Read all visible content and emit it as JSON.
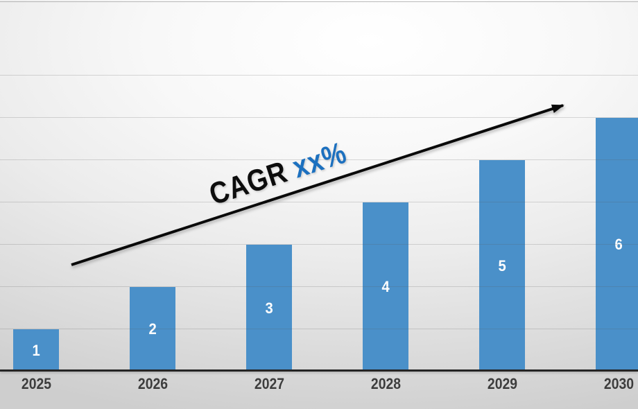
{
  "slide": {
    "annotation": {
      "prefix": "CAGR ",
      "highlight": "xx%"
    },
    "colors": {
      "bar": "#4a90c9",
      "bar_label": "#ffffff",
      "tick_label": "#3d3d3d",
      "axis_line": "#242424",
      "gridline": "rgba(90,90,90,0.22)",
      "annotation_text": "#0d0d0d",
      "annotation_highlight": "#1c70bf",
      "arrow": "#0a0a0a"
    }
  },
  "chart_data": {
    "type": "bar",
    "categories": [
      "2025",
      "2026",
      "2027",
      "2028",
      "2029",
      "2030"
    ],
    "values": [
      1,
      2,
      3,
      4,
      5,
      6
    ],
    "bar_labels": [
      "1",
      "2",
      "3",
      "4",
      "5",
      "6"
    ],
    "title": "",
    "xlabel": "",
    "ylabel": "",
    "ylim": [
      0,
      9
    ],
    "grid": "horizontal gridlines every 1 unit, drawn over bars",
    "legend": "none",
    "annotation": "CAGR xx%",
    "annotation_arrow": "straight black trend arrow rising from above the 2025 bar to the upper right above the 2030 bar"
  }
}
